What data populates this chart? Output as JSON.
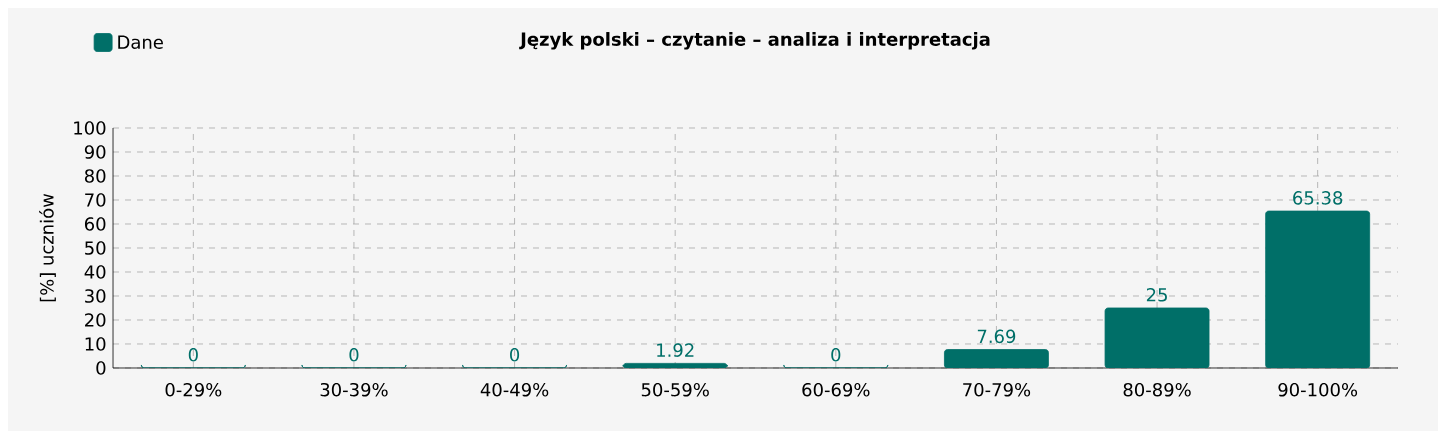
{
  "chart_data": {
    "type": "bar",
    "title": "Język polski – czytanie – analiza i interpretacja",
    "ylabel": "[%] uczniów",
    "categories": [
      "0-29%",
      "30-39%",
      "40-49%",
      "50-59%",
      "60-69%",
      "70-79%",
      "80-89%",
      "90-100%"
    ],
    "series": [
      {
        "name": "Dane",
        "color": "#006f68",
        "values": [
          0,
          0,
          0,
          1.92,
          0,
          7.69,
          25,
          65.38
        ]
      }
    ],
    "ylim": [
      0,
      100
    ],
    "yticks": [
      0,
      10,
      20,
      30,
      40,
      50,
      60,
      70,
      80,
      90,
      100
    ],
    "grid": true,
    "legend": "top left",
    "data_labels": true
  }
}
